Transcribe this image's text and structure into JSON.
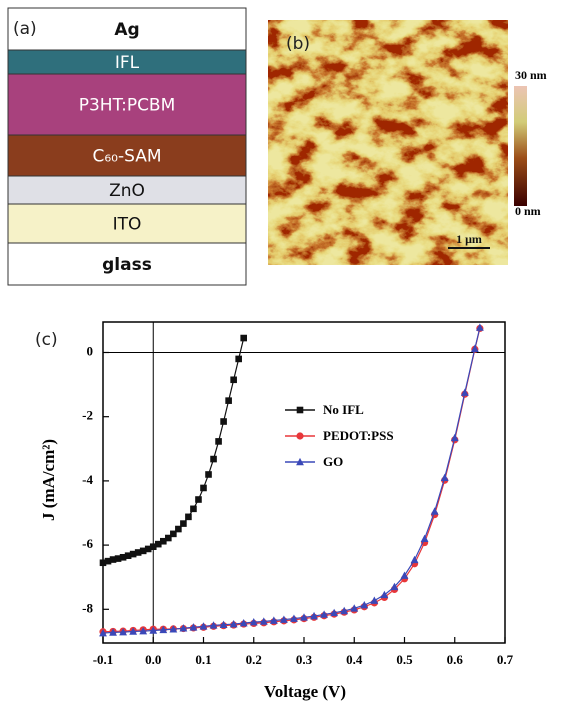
{
  "device_stack": {
    "label": "(a)",
    "layers": [
      {
        "label": "Ag",
        "color": "#ffffff",
        "text_color": "#111111",
        "bold": true
      },
      {
        "label": "IFL",
        "color": "#2f6f7c",
        "text_color": "#ffffff",
        "bold": false
      },
      {
        "label": "P3HT:PCBM",
        "color": "#a8417d",
        "text_color": "#ffffff",
        "bold": false
      },
      {
        "label": "C₆₀-SAM",
        "color": "#8a3d1d",
        "text_color": "#ffffff",
        "bold": false
      },
      {
        "label": "ZnO",
        "color": "#dfe0e6",
        "text_color": "#111111",
        "bold": false
      },
      {
        "label": "ITO",
        "color": "#f6f2c8",
        "text_color": "#111111",
        "bold": false
      },
      {
        "label": "glass",
        "color": "#ffffff",
        "text_color": "#111111",
        "bold": true
      }
    ]
  },
  "afm": {
    "label": "(b)",
    "colorbar_max": "30 nm",
    "colorbar_min": "0 nm",
    "scale_bar": "1 μm"
  },
  "chart_data": {
    "type": "line",
    "label": "(c)",
    "x_label": "Voltage (V)",
    "y_label": "J (mA/cm²)",
    "xlim": [
      -0.1,
      0.7
    ],
    "ylim": [
      -9.05,
      0.95
    ],
    "xticks": [
      -0.1,
      {
        "value": 0,
        "label": "0.0"
      },
      0.1,
      0.2,
      0.3,
      0.4,
      0.5,
      0.6,
      0.7
    ],
    "yticks": [
      0,
      -2,
      -4,
      -6,
      -8
    ],
    "legend": "center",
    "series": [
      {
        "name": "No IFL",
        "color": "#111111",
        "marker": "square",
        "x": [
          -0.1,
          -0.09,
          -0.08,
          -0.07,
          -0.06,
          -0.05,
          -0.04,
          -0.03,
          -0.02,
          -0.01,
          0,
          0.01,
          0.02,
          0.03,
          0.04,
          0.05,
          0.06,
          0.07,
          0.08,
          0.09,
          0.1,
          0.11,
          0.12,
          0.13,
          0.14,
          0.15,
          0.16,
          0.17,
          0.18
        ],
        "values": [
          -6.55,
          -6.5,
          -6.45,
          -6.42,
          -6.38,
          -6.33,
          -6.28,
          -6.23,
          -6.18,
          -6.12,
          -6.05,
          -5.97,
          -5.88,
          -5.78,
          -5.65,
          -5.5,
          -5.33,
          -5.12,
          -4.87,
          -4.58,
          -4.22,
          -3.8,
          -3.32,
          -2.77,
          -2.15,
          -1.5,
          -0.85,
          -0.2,
          0.45
        ]
      },
      {
        "name": "PEDOT:PSS",
        "color": "#e8373a",
        "marker": "circle",
        "x": [
          -0.1,
          -0.08,
          -0.06,
          -0.04,
          -0.02,
          0,
          0.02,
          0.04,
          0.06,
          0.08,
          0.1,
          0.12,
          0.14,
          0.16,
          0.18,
          0.2,
          0.22,
          0.24,
          0.26,
          0.28,
          0.3,
          0.32,
          0.34,
          0.36,
          0.38,
          0.4,
          0.42,
          0.44,
          0.46,
          0.48,
          0.5,
          0.52,
          0.54,
          0.56,
          0.58,
          0.6,
          0.62,
          0.64,
          0.65
        ],
        "values": [
          -8.7,
          -8.69,
          -8.68,
          -8.66,
          -8.64,
          -8.62,
          -8.62,
          -8.61,
          -8.6,
          -8.58,
          -8.56,
          -8.53,
          -8.51,
          -8.49,
          -8.46,
          -8.44,
          -8.42,
          -8.39,
          -8.36,
          -8.33,
          -8.29,
          -8.25,
          -8.2,
          -8.15,
          -8.09,
          -8.02,
          -7.92,
          -7.8,
          -7.63,
          -7.38,
          -7.05,
          -6.58,
          -5.92,
          -5.05,
          -3.98,
          -2.72,
          -1.3,
          0.1,
          0.75
        ]
      },
      {
        "name": "GO",
        "color": "#3a48b8",
        "marker": "triangle",
        "x": [
          -0.1,
          -0.08,
          -0.06,
          -0.04,
          -0.02,
          0,
          0.02,
          0.04,
          0.06,
          0.08,
          0.1,
          0.12,
          0.14,
          0.16,
          0.18,
          0.2,
          0.22,
          0.24,
          0.26,
          0.28,
          0.3,
          0.32,
          0.34,
          0.36,
          0.38,
          0.4,
          0.42,
          0.44,
          0.46,
          0.48,
          0.5,
          0.52,
          0.54,
          0.56,
          0.58,
          0.6,
          0.62,
          0.64,
          0.65
        ],
        "values": [
          -8.74,
          -8.72,
          -8.71,
          -8.69,
          -8.68,
          -8.66,
          -8.64,
          -8.62,
          -8.59,
          -8.56,
          -8.53,
          -8.5,
          -8.48,
          -8.46,
          -8.43,
          -8.4,
          -8.38,
          -8.35,
          -8.32,
          -8.29,
          -8.25,
          -8.21,
          -8.16,
          -8.11,
          -8.05,
          -7.97,
          -7.87,
          -7.73,
          -7.55,
          -7.3,
          -6.95,
          -6.46,
          -5.8,
          -4.95,
          -3.9,
          -2.66,
          -1.25,
          0.12,
          0.78
        ]
      }
    ]
  }
}
